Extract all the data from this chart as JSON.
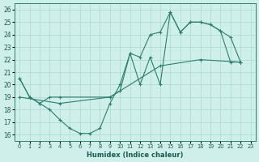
{
  "xlabel": "Humidex (Indice chaleur)",
  "bg_color": "#cff0ea",
  "line_color": "#2d7d6e",
  "grid_color": "#aad9d0",
  "xlim": [
    -0.5,
    23.5
  ],
  "ylim": [
    15.5,
    26.5
  ],
  "xticks": [
    0,
    1,
    2,
    3,
    4,
    5,
    6,
    7,
    8,
    9,
    10,
    11,
    12,
    13,
    14,
    15,
    16,
    17,
    18,
    19,
    20,
    21,
    22,
    23
  ],
  "yticks": [
    16,
    17,
    18,
    19,
    20,
    21,
    22,
    23,
    24,
    25,
    26
  ],
  "series": [
    {
      "x": [
        0,
        1,
        2,
        3,
        4,
        5,
        6,
        7,
        8,
        9,
        10,
        11,
        12,
        13,
        14,
        15,
        16,
        17,
        18,
        19,
        20,
        21,
        22
      ],
      "y": [
        20.5,
        19.0,
        18.5,
        18.0,
        17.2,
        16.5,
        16.1,
        16.1,
        16.5,
        18.5,
        20.0,
        22.5,
        20.0,
        22.2,
        20.0,
        25.8,
        24.2,
        25.0,
        25.0,
        24.8,
        24.3,
        21.8,
        21.8
      ]
    },
    {
      "x": [
        0,
        1,
        2,
        3,
        4,
        9,
        10,
        11,
        12,
        13,
        14,
        15,
        16,
        17,
        18,
        19,
        20,
        21,
        22
      ],
      "y": [
        20.5,
        19.0,
        18.5,
        19.0,
        19.0,
        19.0,
        19.5,
        22.5,
        22.2,
        24.0,
        24.2,
        25.8,
        24.2,
        25.0,
        25.0,
        24.8,
        24.3,
        23.8,
        21.8
      ]
    },
    {
      "x": [
        0,
        4,
        9,
        14,
        18,
        22
      ],
      "y": [
        19.0,
        18.5,
        19.0,
        21.5,
        22.0,
        21.8
      ]
    }
  ]
}
